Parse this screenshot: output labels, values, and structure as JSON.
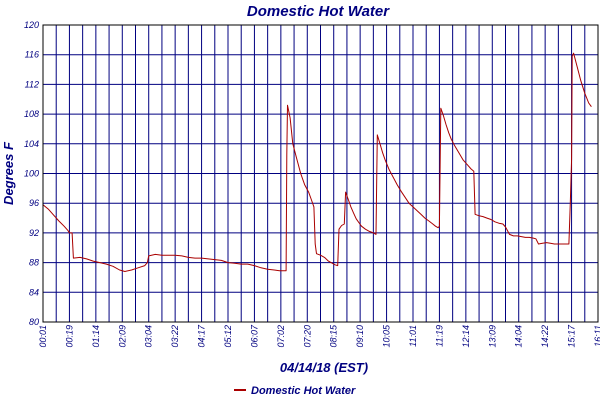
{
  "chart_data": {
    "type": "line",
    "title": "Domestic Hot Water",
    "xlabel": "04/14/18 (EST)",
    "ylabel": "Degrees F",
    "ylim": [
      80,
      120
    ],
    "y_ticks": [
      "80",
      "84",
      "88",
      "92",
      "96",
      "100",
      "104",
      "108",
      "112",
      "116",
      "120"
    ],
    "x_tick_labels": [
      "00:01",
      "00:19",
      "01:14",
      "02:09",
      "03:04",
      "03:22",
      "04:17",
      "05:12",
      "06:07",
      "07:02",
      "07:20",
      "08:15",
      "09:10",
      "10:05",
      "11:01",
      "11:19",
      "12:14",
      "13:09",
      "14:04",
      "14:22",
      "15:17",
      "16:11"
    ],
    "grid": true,
    "legend_position": "bottom-center",
    "colors": {
      "series": "#aa0000",
      "grid": "#000080",
      "text": "#000080",
      "frame": "#000000"
    },
    "series": [
      {
        "name": "Domestic Hot Water",
        "points": [
          [
            0.0,
            95.8
          ],
          [
            0.4,
            95.2
          ],
          [
            0.8,
            94.4
          ],
          [
            1.2,
            93.6
          ],
          [
            1.6,
            92.9
          ],
          [
            1.9,
            92.3
          ],
          [
            2.0,
            92.0
          ],
          [
            2.2,
            92.0
          ],
          [
            2.3,
            88.6
          ],
          [
            2.8,
            88.7
          ],
          [
            3.3,
            88.5
          ],
          [
            3.8,
            88.2
          ],
          [
            4.3,
            88.0
          ],
          [
            4.8,
            87.8
          ],
          [
            5.3,
            87.5
          ],
          [
            5.8,
            87.0
          ],
          [
            6.2,
            86.8
          ],
          [
            6.7,
            87.0
          ],
          [
            7.2,
            87.3
          ],
          [
            7.7,
            87.6
          ],
          [
            7.9,
            88.0
          ],
          [
            8.0,
            88.9
          ],
          [
            8.5,
            89.1
          ],
          [
            9.0,
            89.0
          ],
          [
            9.5,
            89.0
          ],
          [
            10.0,
            89.0
          ],
          [
            10.5,
            88.9
          ],
          [
            11.0,
            88.7
          ],
          [
            11.5,
            88.6
          ],
          [
            12.0,
            88.6
          ],
          [
            12.5,
            88.5
          ],
          [
            13.0,
            88.4
          ],
          [
            13.5,
            88.3
          ],
          [
            14.0,
            88.0
          ],
          [
            14.5,
            87.9
          ],
          [
            15.0,
            87.8
          ],
          [
            15.5,
            87.8
          ],
          [
            16.0,
            87.6
          ],
          [
            16.5,
            87.3
          ],
          [
            17.0,
            87.1
          ],
          [
            17.5,
            87.0
          ],
          [
            17.9,
            86.9
          ],
          [
            18.4,
            86.9
          ],
          [
            18.45,
            102.5
          ],
          [
            18.5,
            109.2
          ],
          [
            18.7,
            107.5
          ],
          [
            18.9,
            104.0
          ],
          [
            19.2,
            102.0
          ],
          [
            19.5,
            100.0
          ],
          [
            19.8,
            98.5
          ],
          [
            20.1,
            97.5
          ],
          [
            20.3,
            96.5
          ],
          [
            20.5,
            95.5
          ],
          [
            20.6,
            90.5
          ],
          [
            20.7,
            89.2
          ],
          [
            21.0,
            89.0
          ],
          [
            21.3,
            88.7
          ],
          [
            21.6,
            88.2
          ],
          [
            21.9,
            87.9
          ],
          [
            22.1,
            87.7
          ],
          [
            22.3,
            87.6
          ],
          [
            22.4,
            92.5
          ],
          [
            22.6,
            93.0
          ],
          [
            22.8,
            93.2
          ],
          [
            22.9,
            97.5
          ],
          [
            23.1,
            96.5
          ],
          [
            23.3,
            95.5
          ],
          [
            23.5,
            94.7
          ],
          [
            23.7,
            93.9
          ],
          [
            23.9,
            93.4
          ],
          [
            24.1,
            92.9
          ],
          [
            24.4,
            92.5
          ],
          [
            24.7,
            92.2
          ],
          [
            25.0,
            92.0
          ],
          [
            25.2,
            91.8
          ],
          [
            25.3,
            105.2
          ],
          [
            25.5,
            104.0
          ],
          [
            25.7,
            102.8
          ],
          [
            25.9,
            101.8
          ],
          [
            26.2,
            100.5
          ],
          [
            26.5,
            99.5
          ],
          [
            26.8,
            98.5
          ],
          [
            27.1,
            97.6
          ],
          [
            27.4,
            96.8
          ],
          [
            27.7,
            96.0
          ],
          [
            28.0,
            95.5
          ],
          [
            28.3,
            95.0
          ],
          [
            28.6,
            94.5
          ],
          [
            28.9,
            94.0
          ],
          [
            29.2,
            93.6
          ],
          [
            29.5,
            93.2
          ],
          [
            29.7,
            92.9
          ],
          [
            29.9,
            92.7
          ],
          [
            30.0,
            92.9
          ],
          [
            30.1,
            108.8
          ],
          [
            30.3,
            107.8
          ],
          [
            30.5,
            106.6
          ],
          [
            30.7,
            105.5
          ],
          [
            30.9,
            104.6
          ],
          [
            31.2,
            103.6
          ],
          [
            31.5,
            102.7
          ],
          [
            31.8,
            101.8
          ],
          [
            32.1,
            101.2
          ],
          [
            32.4,
            100.6
          ],
          [
            32.6,
            100.3
          ],
          [
            32.7,
            94.5
          ],
          [
            33.0,
            94.3
          ],
          [
            33.3,
            94.2
          ],
          [
            33.6,
            94.0
          ],
          [
            33.9,
            93.8
          ],
          [
            34.2,
            93.5
          ],
          [
            34.5,
            93.3
          ],
          [
            34.8,
            93.2
          ],
          [
            35.0,
            92.8
          ],
          [
            35.3,
            91.8
          ],
          [
            35.6,
            91.6
          ],
          [
            35.9,
            91.6
          ],
          [
            36.2,
            91.5
          ],
          [
            36.5,
            91.4
          ],
          [
            36.8,
            91.4
          ],
          [
            37.1,
            91.3
          ],
          [
            37.3,
            91.2
          ],
          [
            37.5,
            90.5
          ],
          [
            37.8,
            90.6
          ],
          [
            38.1,
            90.7
          ],
          [
            38.4,
            90.6
          ],
          [
            38.7,
            90.5
          ],
          [
            39.0,
            90.5
          ],
          [
            39.3,
            90.5
          ],
          [
            39.6,
            90.5
          ],
          [
            39.8,
            90.5
          ],
          [
            39.9,
            96.0
          ],
          [
            40.0,
            102.0
          ],
          [
            40.05,
            115.8
          ],
          [
            40.15,
            116.2
          ],
          [
            40.4,
            114.5
          ],
          [
            40.7,
            112.5
          ],
          [
            41.0,
            110.8
          ],
          [
            41.3,
            109.5
          ],
          [
            41.5,
            109.0
          ]
        ]
      }
    ]
  }
}
